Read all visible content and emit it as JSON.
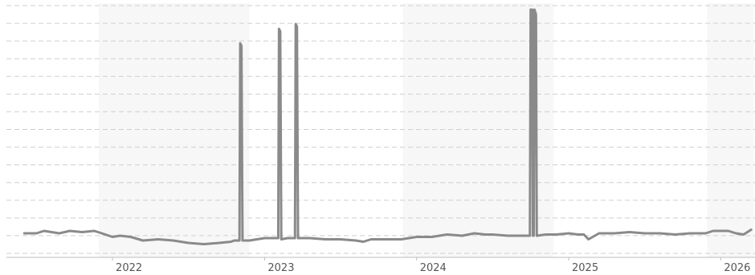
{
  "chart_data": {
    "type": "line",
    "title": "",
    "xlabel": "",
    "ylabel": "",
    "x_range": [
      2021.35,
      2026.22
    ],
    "y_range": [
      0,
      100
    ],
    "grid": true,
    "legend": "none",
    "x_ticks": [
      {
        "value": 2022,
        "label": "2022"
      },
      {
        "value": 2023,
        "label": "2023"
      },
      {
        "value": 2024,
        "label": "2024"
      },
      {
        "value": 2025,
        "label": "2025"
      },
      {
        "value": 2026,
        "label": "2026"
      }
    ],
    "shaded_periods": [
      [
        2021.91,
        2022.9
      ],
      [
        2023.91,
        2024.9
      ],
      [
        2025.91,
        2026.22
      ]
    ],
    "series": [
      {
        "color": "#8a8a8a",
        "points": [
          [
            2021.42,
            9
          ],
          [
            2021.5,
            9
          ],
          [
            2021.55,
            10
          ],
          [
            2021.6,
            9.5
          ],
          [
            2021.65,
            9
          ],
          [
            2021.72,
            10
          ],
          [
            2021.8,
            9.5
          ],
          [
            2021.88,
            10
          ],
          [
            2021.93,
            9
          ],
          [
            2022.0,
            7.5
          ],
          [
            2022.05,
            8
          ],
          [
            2022.12,
            7.5
          ],
          [
            2022.2,
            6
          ],
          [
            2022.3,
            6.5
          ],
          [
            2022.4,
            6
          ],
          [
            2022.5,
            5
          ],
          [
            2022.6,
            4.5
          ],
          [
            2022.7,
            5
          ],
          [
            2022.78,
            5.5
          ],
          [
            2022.8,
            6
          ],
          [
            2022.835,
            6
          ],
          [
            2022.84,
            88
          ],
          [
            2022.848,
            87
          ],
          [
            2022.855,
            6
          ],
          [
            2022.9,
            6
          ],
          [
            2022.95,
            6.5
          ],
          [
            2023.0,
            7
          ],
          [
            2023.05,
            7
          ],
          [
            2023.08,
            7
          ],
          [
            2023.09,
            7
          ],
          [
            2023.095,
            94
          ],
          [
            2023.103,
            93
          ],
          [
            2023.11,
            6.5
          ],
          [
            2023.15,
            7
          ],
          [
            2023.19,
            7
          ],
          [
            2023.2,
            7
          ],
          [
            2023.205,
            96
          ],
          [
            2023.213,
            95
          ],
          [
            2023.22,
            7
          ],
          [
            2023.3,
            7
          ],
          [
            2023.4,
            6.5
          ],
          [
            2023.5,
            6.5
          ],
          [
            2023.6,
            6
          ],
          [
            2023.65,
            5.5
          ],
          [
            2023.7,
            6.5
          ],
          [
            2023.8,
            6.5
          ],
          [
            2023.9,
            6.5
          ],
          [
            2024.0,
            7.5
          ],
          [
            2024.1,
            7.5
          ],
          [
            2024.2,
            8.5
          ],
          [
            2024.3,
            8
          ],
          [
            2024.38,
            9
          ],
          [
            2024.45,
            8.5
          ],
          [
            2024.5,
            8.5
          ],
          [
            2024.6,
            8
          ],
          [
            2024.7,
            8
          ],
          [
            2024.74,
            8
          ],
          [
            2024.745,
            8
          ],
          [
            2024.75,
            102
          ],
          [
            2024.76,
            102
          ],
          [
            2024.765,
            8
          ],
          [
            2024.77,
            8
          ],
          [
            2024.775,
            102
          ],
          [
            2024.785,
            100
          ],
          [
            2024.79,
            8
          ],
          [
            2024.85,
            8.5
          ],
          [
            2024.92,
            8.5
          ],
          [
            2025.0,
            9
          ],
          [
            2025.06,
            8.5
          ],
          [
            2025.1,
            8.5
          ],
          [
            2025.13,
            6.5
          ],
          [
            2025.2,
            9
          ],
          [
            2025.3,
            9
          ],
          [
            2025.4,
            9.5
          ],
          [
            2025.5,
            9
          ],
          [
            2025.6,
            9
          ],
          [
            2025.7,
            8.5
          ],
          [
            2025.8,
            9
          ],
          [
            2025.9,
            9
          ],
          [
            2025.95,
            10
          ],
          [
            2026.05,
            10
          ],
          [
            2026.1,
            9
          ],
          [
            2026.15,
            8.5
          ],
          [
            2026.2,
            10.5
          ]
        ]
      }
    ]
  }
}
